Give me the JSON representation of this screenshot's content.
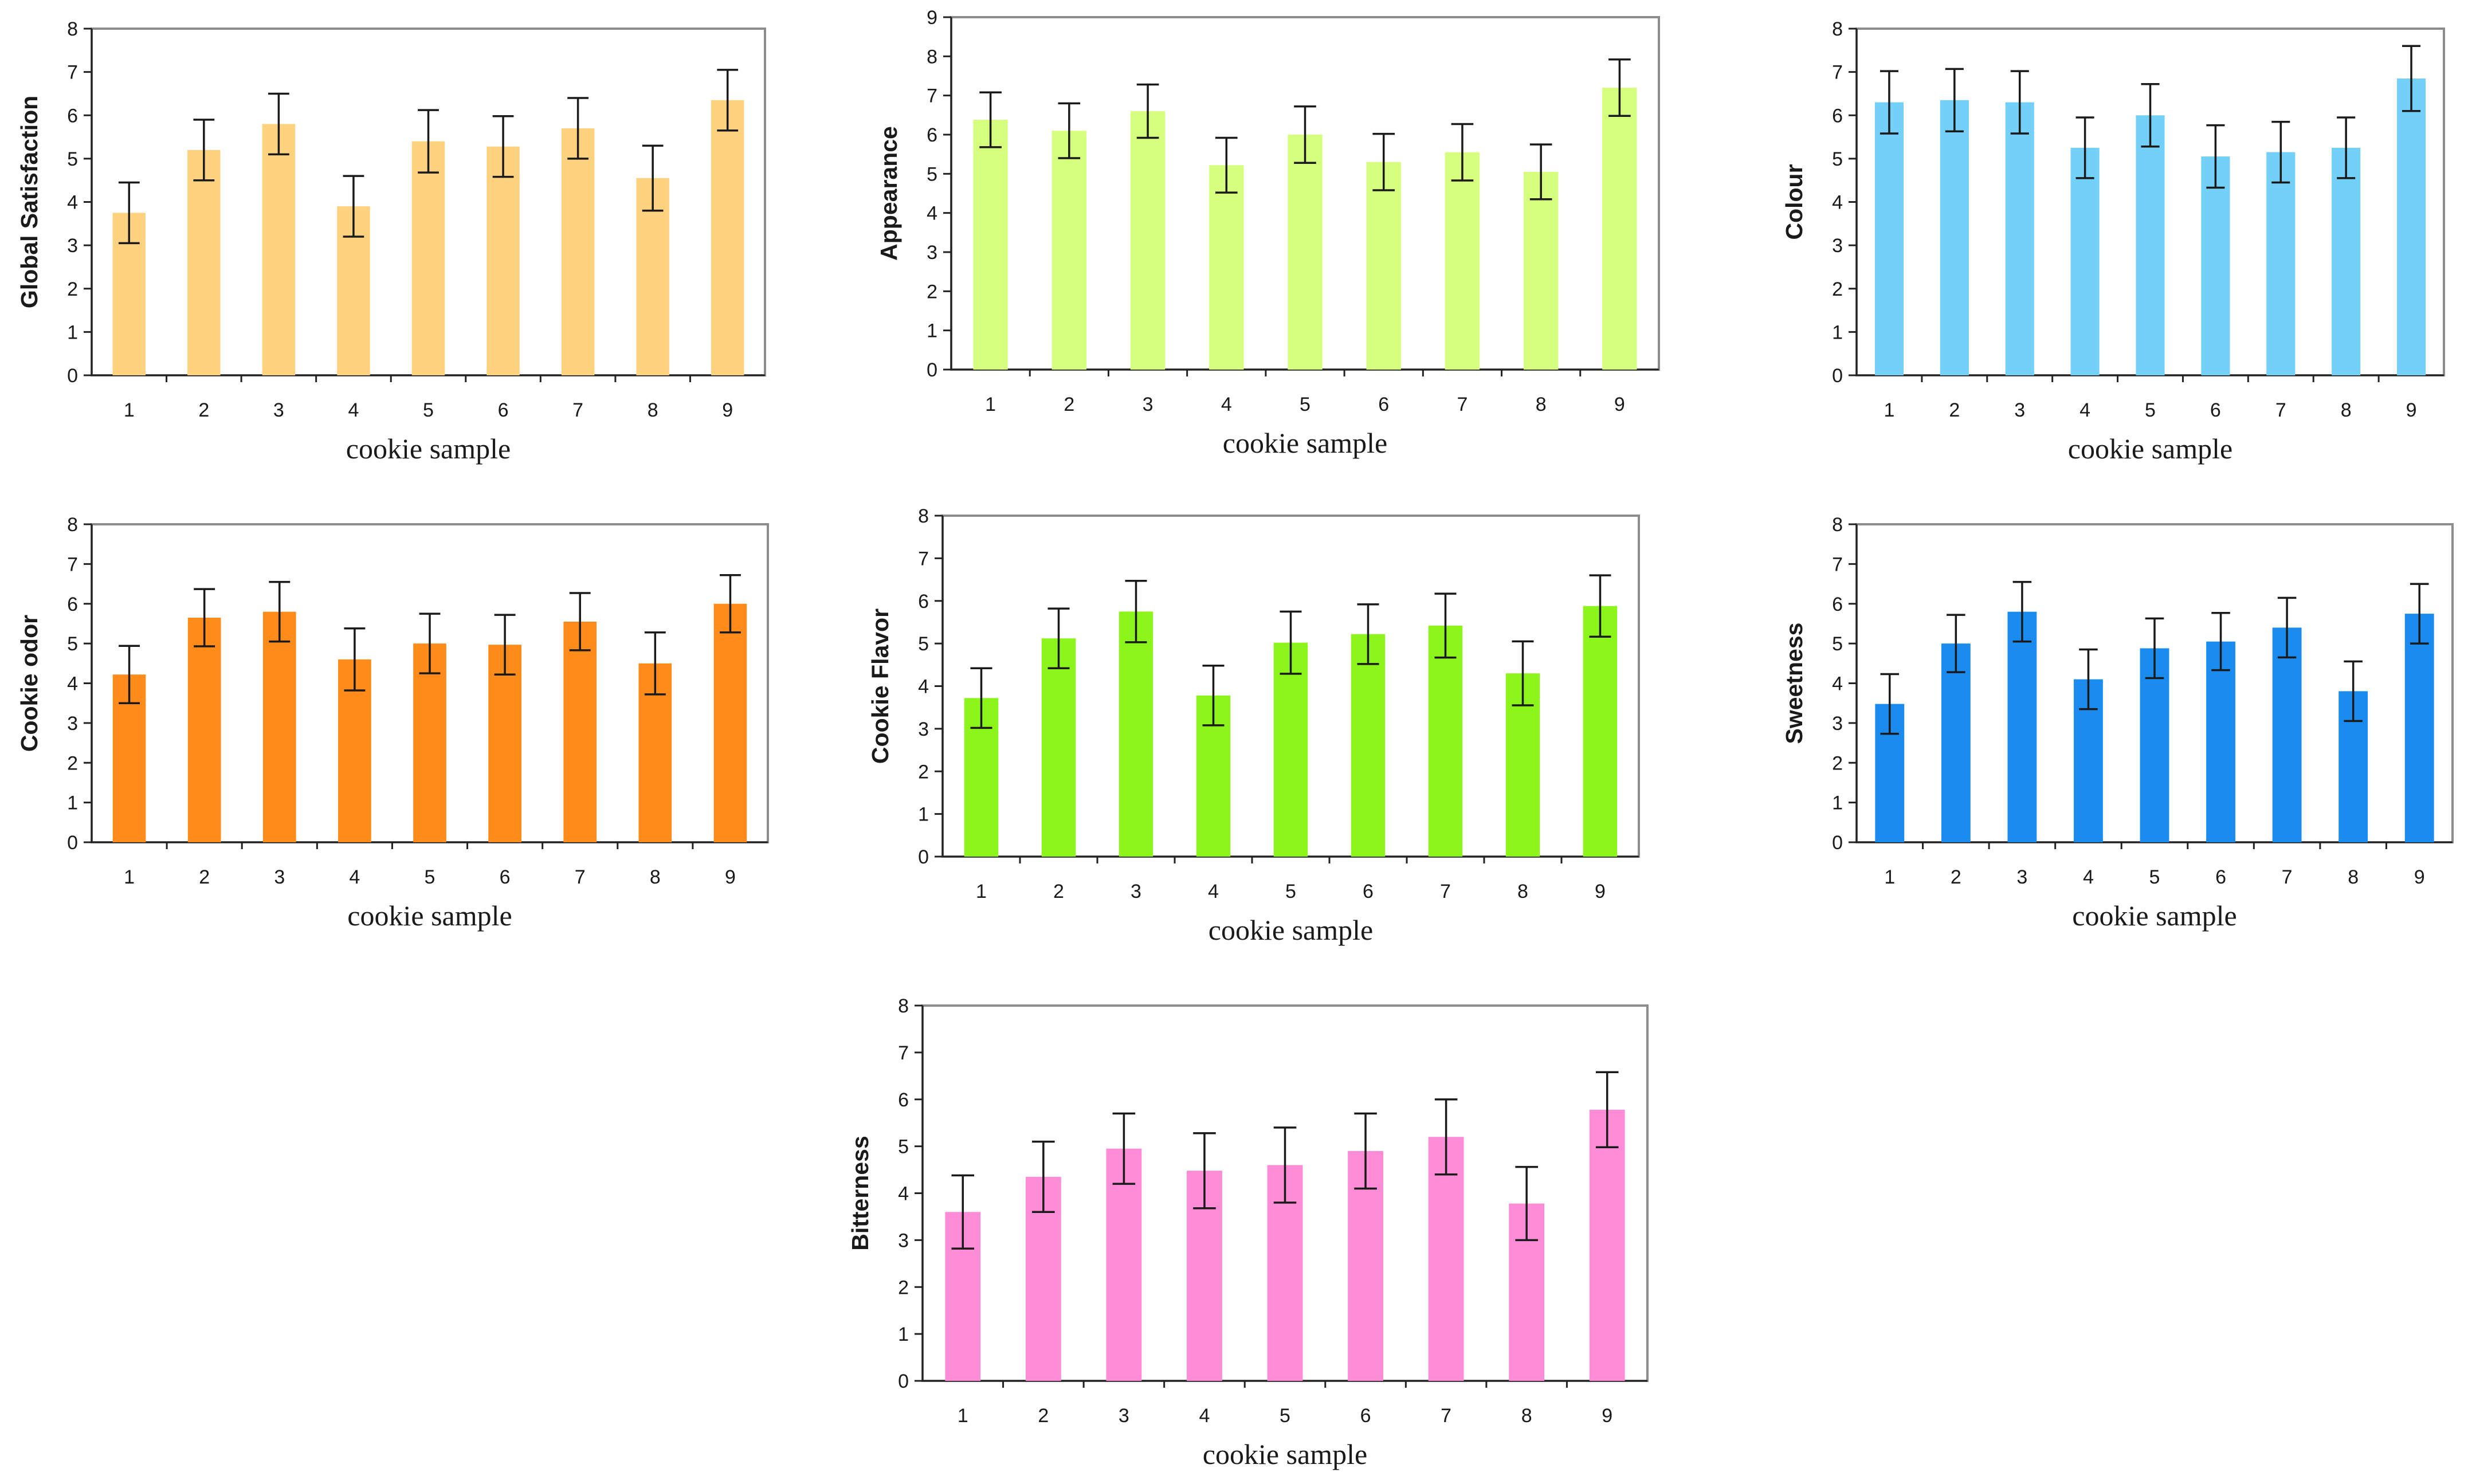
{
  "chart_data": [
    {
      "type": "bar",
      "title": "",
      "xlabel": "cookie sample",
      "ylabel": "Global Satisfaction",
      "categories": [
        "1",
        "2",
        "3",
        "4",
        "5",
        "6",
        "7",
        "8",
        "9"
      ],
      "values": [
        3.75,
        5.2,
        5.8,
        3.9,
        5.4,
        5.28,
        5.7,
        4.55,
        6.35
      ],
      "errors": [
        0.7,
        0.7,
        0.7,
        0.7,
        0.72,
        0.7,
        0.7,
        0.75,
        0.7
      ],
      "ylim": [
        0,
        8
      ],
      "yticks": [
        "0",
        "1",
        "2",
        "3",
        "4",
        "5",
        "6",
        "7",
        "8"
      ],
      "color": "#FFD27F"
    },
    {
      "type": "bar",
      "title": "",
      "xlabel": "cookie sample",
      "ylabel": "Appearance",
      "categories": [
        "1",
        "2",
        "3",
        "4",
        "5",
        "6",
        "7",
        "8",
        "9"
      ],
      "values": [
        6.38,
        6.1,
        6.6,
        5.22,
        6.0,
        5.3,
        5.55,
        5.05,
        7.2
      ],
      "errors": [
        0.7,
        0.7,
        0.68,
        0.7,
        0.72,
        0.72,
        0.72,
        0.7,
        0.72
      ],
      "ylim": [
        0,
        9
      ],
      "yticks": [
        "0",
        "1",
        "2",
        "3",
        "4",
        "5",
        "6",
        "7",
        "8",
        "9"
      ],
      "color": "#D7FF7F"
    },
    {
      "type": "bar",
      "title": "",
      "xlabel": "cookie sample",
      "ylabel": "Colour",
      "categories": [
        "1",
        "2",
        "3",
        "4",
        "5",
        "6",
        "7",
        "8",
        "9"
      ],
      "values": [
        6.3,
        6.35,
        6.3,
        5.25,
        6.0,
        5.05,
        5.15,
        5.25,
        6.85
      ],
      "errors": [
        0.72,
        0.72,
        0.72,
        0.7,
        0.72,
        0.72,
        0.7,
        0.7,
        0.75
      ],
      "ylim": [
        0,
        8
      ],
      "yticks": [
        "0",
        "1",
        "2",
        "3",
        "4",
        "5",
        "6",
        "7",
        "8"
      ],
      "color": "#73D0F9"
    },
    {
      "type": "bar",
      "title": "",
      "xlabel": "cookie sample",
      "ylabel": "Cookie odor",
      "categories": [
        "1",
        "2",
        "3",
        "4",
        "5",
        "6",
        "7",
        "8",
        "9"
      ],
      "values": [
        4.22,
        5.65,
        5.8,
        4.6,
        5.0,
        4.97,
        5.55,
        4.5,
        6.0
      ],
      "errors": [
        0.72,
        0.72,
        0.75,
        0.78,
        0.75,
        0.75,
        0.72,
        0.78,
        0.72
      ],
      "ylim": [
        0,
        8
      ],
      "yticks": [
        "0",
        "1",
        "2",
        "3",
        "4",
        "5",
        "6",
        "7",
        "8"
      ],
      "color": "#FF8C1A"
    },
    {
      "type": "bar",
      "title": "",
      "xlabel": "cookie sample",
      "ylabel": "Cookie Flavor",
      "categories": [
        "1",
        "2",
        "3",
        "4",
        "5",
        "6",
        "7",
        "8",
        "9"
      ],
      "values": [
        3.72,
        5.12,
        5.75,
        3.78,
        5.02,
        5.22,
        5.42,
        4.3,
        5.88
      ],
      "errors": [
        0.7,
        0.7,
        0.72,
        0.7,
        0.73,
        0.7,
        0.75,
        0.75,
        0.72
      ],
      "ylim": [
        0,
        8
      ],
      "yticks": [
        "0",
        "1",
        "2",
        "3",
        "4",
        "5",
        "6",
        "7",
        "8"
      ],
      "color": "#8CF51A"
    },
    {
      "type": "bar",
      "title": "",
      "xlabel": "cookie sample",
      "ylabel": "Sweetness",
      "categories": [
        "1",
        "2",
        "3",
        "4",
        "5",
        "6",
        "7",
        "8",
        "9"
      ],
      "values": [
        3.48,
        5.0,
        5.8,
        4.1,
        4.88,
        5.05,
        5.4,
        3.8,
        5.75
      ],
      "errors": [
        0.75,
        0.72,
        0.75,
        0.75,
        0.75,
        0.72,
        0.75,
        0.75,
        0.75
      ],
      "ylim": [
        0,
        8
      ],
      "yticks": [
        "0",
        "1",
        "2",
        "3",
        "4",
        "5",
        "6",
        "7",
        "8"
      ],
      "color": "#1A8CF0"
    },
    {
      "type": "bar",
      "title": "",
      "xlabel": "cookie sample",
      "ylabel": "Bitterness",
      "categories": [
        "1",
        "2",
        "3",
        "4",
        "5",
        "6",
        "7",
        "8",
        "9"
      ],
      "values": [
        3.6,
        4.35,
        4.95,
        4.48,
        4.6,
        4.9,
        5.2,
        3.78,
        5.78
      ],
      "errors": [
        0.78,
        0.75,
        0.75,
        0.8,
        0.8,
        0.8,
        0.8,
        0.78,
        0.8
      ],
      "ylim": [
        0,
        8
      ],
      "yticks": [
        "0",
        "1",
        "2",
        "3",
        "4",
        "5",
        "6",
        "7",
        "8"
      ],
      "color": "#FF8CD7"
    }
  ]
}
